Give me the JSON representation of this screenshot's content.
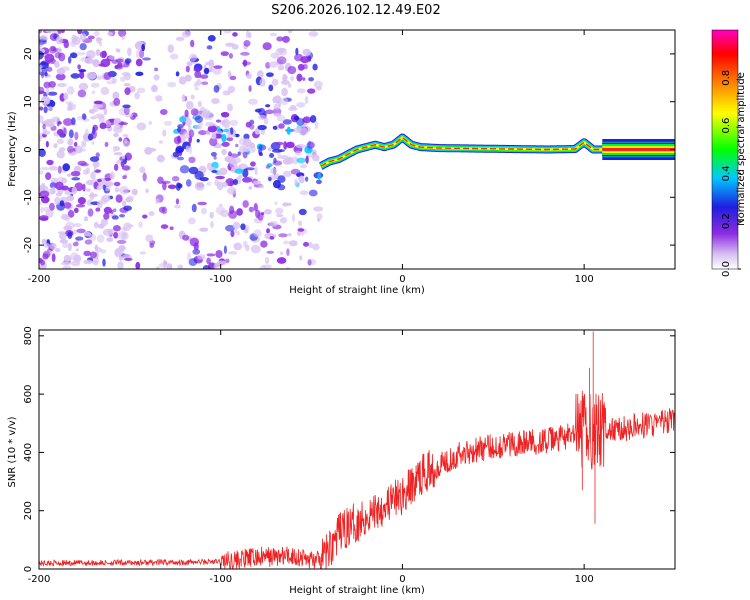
{
  "title": "S206.2026.102.12.49.E02",
  "chart_data": [
    {
      "id": "spectrogram",
      "type": "heatmap",
      "xlabel": "Height of straight line (km)",
      "ylabel": "Frequency (Hz)",
      "xlim": [
        -200,
        150
      ],
      "ylim": [
        -25,
        25
      ],
      "xticks": [
        "-200",
        "-100",
        "0",
        "100"
      ],
      "yticks": [
        "-20",
        "-10",
        "0",
        "10",
        "20"
      ],
      "colorbar": {
        "label": "Normalized spectral amplitude",
        "range": [
          0,
          1
        ],
        "ticks": [
          "0.0",
          "0.2",
          "0.4",
          "0.6",
          "0.8"
        ],
        "colors": [
          "#ffffff",
          "#d9c2f2",
          "#8b2be2",
          "#1e1ee0",
          "#00c8ff",
          "#00ff00",
          "#ffff00",
          "#ff8000",
          "#ff0000",
          "#ff00c0"
        ]
      },
      "ridge": {
        "description": "frequency of dominant spectral peak vs height",
        "x": [
          -45,
          -40,
          -35,
          -30,
          -25,
          -20,
          -15,
          -10,
          -5,
          0,
          5,
          10,
          20,
          40,
          60,
          80,
          95,
          100,
          105,
          110,
          150
        ],
        "y": [
          -3.5,
          -2.5,
          -2,
          -1,
          0,
          0.5,
          1,
          0.5,
          1,
          2.5,
          1,
          0.5,
          0.3,
          0.2,
          0.1,
          0,
          0.1,
          1.5,
          0,
          0,
          0
        ]
      },
      "noise_region_x": [
        -200,
        -45
      ],
      "constant_band_x": [
        110,
        150
      ]
    },
    {
      "id": "snr",
      "type": "line",
      "xlabel": "Height of straight line (km)",
      "ylabel": "SNR (10 * v/v)",
      "xlim": [
        -200,
        150
      ],
      "ylim": [
        0,
        820
      ],
      "xticks": [
        "-200",
        "-100",
        "0",
        "100"
      ],
      "yticks": [
        "0",
        "200",
        "400",
        "600",
        "800"
      ],
      "color": "#ee2222",
      "trend": {
        "x": [
          -200,
          -140,
          -100,
          -80,
          -60,
          -45,
          -34,
          -20,
          -10,
          0,
          10,
          20,
          30,
          40,
          60,
          80,
          95,
          100,
          105,
          110,
          130,
          150
        ],
        "y": [
          20,
          22,
          25,
          40,
          45,
          25,
          130,
          180,
          220,
          250,
          320,
          360,
          390,
          410,
          430,
          440,
          460,
          480,
          480,
          470,
          490,
          510
        ]
      },
      "spikes": [
        {
          "x": 105,
          "y": 815
        },
        {
          "x": 106,
          "y": 155
        },
        {
          "x": 103,
          "y": 690
        },
        {
          "x": 99,
          "y": 270
        },
        {
          "x": 108,
          "y": 560
        }
      ]
    }
  ]
}
